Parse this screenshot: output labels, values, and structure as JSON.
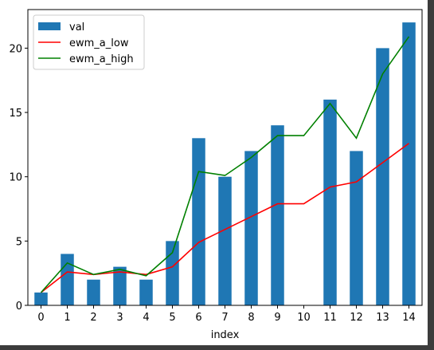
{
  "chart_data": {
    "type": "bar",
    "title": "",
    "xlabel": "index",
    "ylabel": "",
    "categories": [
      "0",
      "1",
      "2",
      "3",
      "4",
      "5",
      "6",
      "7",
      "8",
      "9",
      "10",
      "11",
      "12",
      "13",
      "14"
    ],
    "ylim": [
      0,
      23
    ],
    "yticks": [
      0,
      5,
      10,
      15,
      20
    ],
    "grid": false,
    "legend_placement": "top-left",
    "series": [
      {
        "name": "val",
        "kind": "bar",
        "color": "#1f77b4",
        "values": [
          1,
          4,
          2,
          3,
          2,
          5,
          13,
          10,
          12,
          14,
          0,
          16,
          12,
          20,
          22
        ]
      },
      {
        "name": "ewm_a_low",
        "kind": "line",
        "color": "#ff0000",
        "values": [
          1.0,
          2.6,
          2.4,
          2.6,
          2.4,
          3.0,
          4.9,
          5.9,
          6.9,
          7.9,
          7.9,
          9.2,
          9.6,
          11.1,
          12.6
        ]
      },
      {
        "name": "ewm_a_high",
        "kind": "line",
        "color": "#008000",
        "values": [
          1.0,
          3.3,
          2.4,
          2.8,
          2.3,
          4.1,
          10.4,
          10.1,
          11.5,
          13.2,
          13.2,
          15.7,
          13.0,
          18.0,
          20.9
        ]
      }
    ]
  }
}
